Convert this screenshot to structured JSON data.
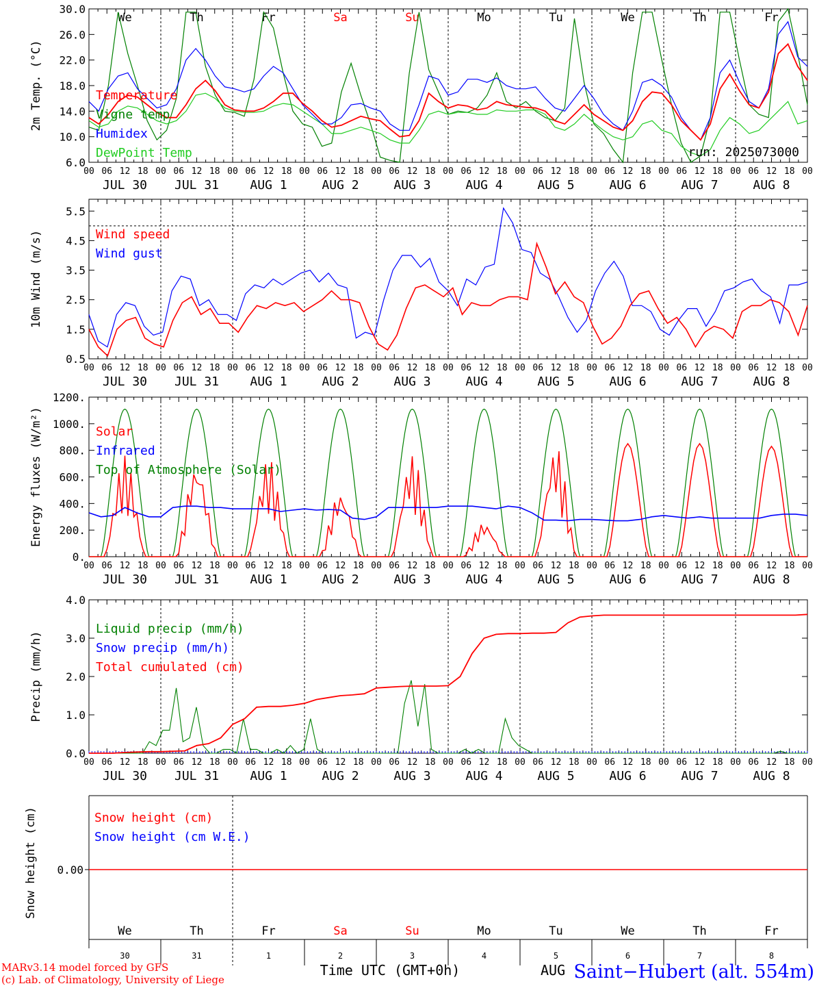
{
  "colors": {
    "red": "#ff0000",
    "green": "#008000",
    "lightgreen": "#22cc22",
    "blue": "#0000ff",
    "black": "#000000"
  },
  "days": {
    "labels": [
      "We",
      "Th",
      "Fr",
      "Sa",
      "Su",
      "Mo",
      "Tu",
      "We",
      "Th",
      "Fr"
    ],
    "weekend_color_days": [
      "Sa",
      "Su"
    ],
    "dates": [
      "JUL 30",
      "JUL 31",
      "AUG  1",
      "AUG  2",
      "AUG  3",
      "AUG  4",
      "AUG  5",
      "AUG  6",
      "AUG  7",
      "AUG  8"
    ],
    "day_numbers": [
      "30",
      "31",
      "1",
      "2",
      "3",
      "4",
      "5",
      "6",
      "7",
      "8"
    ],
    "hour_ticks": [
      "00",
      "06",
      "12",
      "18"
    ],
    "end_tick": "00"
  },
  "footer": {
    "model": "MARv3.14 model forced by GFS",
    "copyright": "(c) Lab. of Climatology, University of Liege",
    "xlabel": "Time UTC (GMT+0h)",
    "station": "Saint−Hubert (alt. 554m)",
    "overlap_text": "AUG"
  },
  "chart_data": [
    {
      "type": "line",
      "ylabel": "2m Temp. (°C)",
      "ylim": [
        6,
        30
      ],
      "yticks": [
        "6.0",
        "10.0",
        "14.0",
        "18.0",
        "22.0",
        "26.0",
        "30.0"
      ],
      "run_label": "run: 2025073000",
      "x_hours_step": 3,
      "series": [
        {
          "name": "Temperature",
          "color": "#ff0000",
          "values": [
            13,
            12,
            13.5,
            15.5,
            16.5,
            16.2,
            15,
            13.8,
            13,
            13,
            15,
            17.5,
            18.8,
            17.2,
            15,
            14.2,
            14,
            14,
            14.5,
            15.5,
            16.8,
            16.8,
            15.2,
            14,
            12.5,
            11.5,
            11.8,
            12.5,
            13.2,
            12.8,
            12.5,
            11.2,
            10,
            10.2,
            12.5,
            16.8,
            15.5,
            14.5,
            15,
            14.8,
            14.2,
            14.5,
            15.5,
            15,
            14.8,
            14.6,
            14.5,
            14,
            12.5,
            12,
            13.5,
            15,
            13.5,
            12.5,
            11.5,
            11,
            12.5,
            15.5,
            17,
            16.8,
            15,
            12.5,
            11,
            9.5,
            12,
            17.5,
            19.8,
            17.2,
            15,
            14.5,
            17,
            23,
            24.5,
            21,
            18.8
          ]
        },
        {
          "name": "Vigne temp",
          "color": "#008000",
          "values": [
            11.5,
            11,
            18,
            29.5,
            23,
            18,
            12.5,
            9.5,
            11,
            16,
            29.5,
            29.5,
            21,
            16.5,
            14,
            13.8,
            13.2,
            19,
            29.5,
            27,
            20,
            14,
            12,
            11.5,
            8.5,
            9,
            17,
            21.5,
            16.5,
            12,
            6.8,
            6.3,
            6,
            20,
            29.5,
            20.5,
            17,
            13.5,
            14,
            13.8,
            14.5,
            16.5,
            20,
            15.5,
            14.5,
            15.5,
            14,
            13,
            12.5,
            14.5,
            28.5,
            18.5,
            12,
            10.5,
            8,
            6,
            20,
            29.5,
            29.5,
            22,
            15,
            9,
            6,
            7,
            13,
            29.5,
            29.5,
            22,
            15,
            13.5,
            13,
            28,
            30,
            23,
            15
          ]
        },
        {
          "name": "Humidex",
          "color": "#0000ff",
          "values": [
            15.5,
            14,
            17.5,
            19.5,
            20,
            17.5,
            16,
            14.5,
            15,
            17.5,
            22,
            23.8,
            22,
            19.5,
            17.8,
            17.5,
            17,
            17.5,
            19.5,
            21,
            20,
            17.5,
            15,
            13.5,
            12,
            12,
            13,
            15,
            15.2,
            14.5,
            14,
            12,
            11,
            11,
            15,
            19.5,
            19,
            16.5,
            17,
            19,
            19,
            18.5,
            19.2,
            18,
            17.5,
            17.5,
            17.8,
            16,
            14.5,
            14,
            16,
            18,
            16,
            13.5,
            12,
            11,
            14,
            18.5,
            19,
            18,
            16.2,
            13,
            11,
            9.5,
            13,
            20,
            22,
            18.5,
            15.5,
            14.5,
            17.5,
            26,
            28,
            22.5,
            21
          ]
        },
        {
          "name": "DewPoint Temp",
          "color": "#22cc22",
          "values": [
            12.5,
            11.5,
            12,
            14,
            14.8,
            14.5,
            13.5,
            12.5,
            12,
            12.5,
            14,
            16.5,
            16.8,
            16,
            14.5,
            14,
            13.8,
            13.8,
            14,
            14.8,
            15.2,
            15,
            14,
            13,
            12,
            10.5,
            10.5,
            11,
            11.5,
            11,
            10.5,
            9.5,
            9,
            9,
            11,
            13.5,
            14,
            13.5,
            13.8,
            13.8,
            13.5,
            13.5,
            14.2,
            14,
            14,
            14.2,
            14.2,
            13.5,
            11.5,
            11,
            12,
            13.5,
            12.2,
            11,
            10,
            9.5,
            10,
            12,
            12.5,
            11,
            10.5,
            8.5,
            7.5,
            7,
            8,
            11,
            13,
            12,
            10.5,
            11,
            12.5,
            14,
            15.5,
            12,
            12.5
          ]
        }
      ]
    },
    {
      "type": "line",
      "ylabel": "10m Wind (m/s)",
      "ylim": [
        0.5,
        5.9
      ],
      "yticks": [
        "0.5",
        "1.5",
        "2.5",
        "3.5",
        "4.5",
        "5.5"
      ],
      "reference_line": 5.0,
      "x_hours_step": 3,
      "series": [
        {
          "name": "Wind speed",
          "color": "#ff0000",
          "values": [
            1.5,
            0.9,
            0.6,
            1.5,
            1.8,
            1.9,
            1.2,
            1.0,
            0.9,
            1.8,
            2.4,
            2.6,
            2.0,
            2.2,
            1.7,
            1.7,
            1.4,
            1.9,
            2.3,
            2.2,
            2.4,
            2.3,
            2.4,
            2.1,
            2.3,
            2.5,
            2.8,
            2.5,
            2.5,
            2.4,
            1.6,
            1.0,
            0.8,
            1.3,
            2.2,
            2.9,
            3.0,
            2.8,
            2.6,
            2.9,
            2.0,
            2.4,
            2.3,
            2.3,
            2.5,
            2.6,
            2.6,
            2.5,
            4.4,
            3.6,
            2.7,
            3.1,
            2.6,
            2.4,
            1.6,
            1.0,
            1.2,
            1.6,
            2.3,
            2.7,
            2.8,
            2.2,
            1.7,
            1.9,
            1.5,
            0.9,
            1.4,
            1.6,
            1.5,
            1.2,
            2.1,
            2.3,
            2.3,
            2.5,
            2.4,
            2.1,
            1.3,
            2.3
          ]
        },
        {
          "name": "Wind gust",
          "color": "#0000ff",
          "values": [
            2.0,
            1.1,
            0.9,
            2.0,
            2.4,
            2.3,
            1.6,
            1.3,
            1.4,
            2.8,
            3.3,
            3.2,
            2.3,
            2.5,
            2.0,
            2.0,
            1.8,
            2.7,
            3.0,
            2.9,
            3.2,
            3.0,
            3.2,
            3.4,
            3.5,
            3.1,
            3.4,
            3.0,
            2.9,
            1.2,
            1.4,
            1.3,
            2.5,
            3.5,
            4.0,
            4.0,
            3.6,
            3.9,
            3.1,
            2.8,
            2.3,
            3.2,
            3.0,
            3.6,
            3.7,
            5.6,
            5.1,
            4.2,
            4.1,
            3.4,
            3.2,
            2.6,
            1.9,
            1.4,
            1.8,
            2.8,
            3.4,
            3.8,
            3.3,
            2.3,
            2.3,
            2.1,
            1.5,
            1.3,
            1.8,
            2.2,
            2.2,
            1.6,
            2.1,
            2.8,
            2.9,
            3.1,
            3.2,
            2.8,
            2.6,
            1.7,
            3.0,
            3.0,
            3.1
          ]
        }
      ]
    },
    {
      "type": "line",
      "ylabel": "Energy fluxes (W/m²)",
      "ylim": [
        0,
        1200
      ],
      "yticks": [
        "0.",
        "200.",
        "400.",
        "600.",
        "800.",
        "1000.",
        "1200."
      ],
      "series": [
        {
          "name": "Solar",
          "color": "#ff0000",
          "peaks": [
            760,
            720,
            740,
            500,
            770,
            260,
            840,
            850,
            850,
            830
          ],
          "irregular_days": [
            0,
            1,
            2,
            3,
            4,
            5,
            6
          ]
        },
        {
          "name": "Infrared",
          "color": "#0000ff",
          "values": [
            330,
            300,
            310,
            370,
            330,
            300,
            300,
            370,
            380,
            380,
            370,
            370,
            360,
            360,
            360,
            360,
            340,
            350,
            360,
            350,
            355,
            350,
            290,
            280,
            300,
            370,
            370,
            370,
            370,
            370,
            380,
            380,
            380,
            370,
            360,
            380,
            370,
            330,
            275,
            275,
            270,
            280,
            280,
            275,
            270,
            270,
            280,
            300,
            310,
            300,
            290,
            300,
            290,
            290,
            290,
            290,
            290,
            310,
            320,
            320,
            310
          ]
        },
        {
          "name": "Top of Atmosphere (Solar)",
          "color": "#008000",
          "peak": 1110
        }
      ]
    },
    {
      "type": "line",
      "ylabel": "Precip (mm/h)",
      "ylim": [
        0,
        4
      ],
      "yticks": [
        "0.0",
        "1.0",
        "2.0",
        "3.0",
        "4.0"
      ],
      "x_hours_step": 3,
      "series": [
        {
          "name": "Liquid precip (mm/h)",
          "color": "#008000",
          "values": [
            0,
            0,
            0,
            0,
            0,
            0,
            0,
            0,
            0,
            0.3,
            0.2,
            0.6,
            0.6,
            1.7,
            0.3,
            0.4,
            1.2,
            0.2,
            0,
            0,
            0.1,
            0.1,
            0,
            0.9,
            0.1,
            0.1,
            0,
            0,
            0.1,
            0,
            0.2,
            0,
            0.1,
            0.9,
            0.1,
            0,
            0,
            0,
            0,
            0,
            0,
            0,
            0,
            0,
            0,
            0,
            0,
            1.3,
            1.9,
            0.7,
            1.8,
            0.1,
            0,
            0,
            0,
            0,
            0.1,
            0,
            0.1,
            0,
            0,
            0,
            0.9,
            0.4,
            0.2,
            0.1,
            0,
            0,
            0,
            0,
            0,
            0,
            0,
            0,
            0,
            0,
            0,
            0,
            0,
            0,
            0,
            0,
            0,
            0,
            0,
            0,
            0,
            0,
            0,
            0,
            0,
            0,
            0,
            0,
            0,
            0,
            0,
            0,
            0,
            0,
            0,
            0,
            0,
            0.05,
            0,
            0,
            0,
            0
          ]
        },
        {
          "name": "Snow precip (mm/h)",
          "color": "#0000ff",
          "values": []
        },
        {
          "name": "Total cumulated (cm)",
          "color": "#ff0000",
          "values": [
            0,
            0,
            0,
            0.02,
            0.03,
            0.04,
            0.04,
            0.05,
            0.06,
            0.2,
            0.25,
            0.4,
            0.75,
            0.9,
            1.2,
            1.22,
            1.22,
            1.25,
            1.3,
            1.4,
            1.45,
            1.5,
            1.52,
            1.55,
            1.7,
            1.72,
            1.74,
            1.75,
            1.75,
            1.75,
            1.76,
            2.0,
            2.6,
            3.0,
            3.1,
            3.12,
            3.12,
            3.13,
            3.13,
            3.15,
            3.4,
            3.55,
            3.58,
            3.6,
            3.6,
            3.6,
            3.6,
            3.6,
            3.6,
            3.6,
            3.6,
            3.6,
            3.6,
            3.6,
            3.6,
            3.6,
            3.6,
            3.6,
            3.6,
            3.6,
            3.62
          ]
        }
      ]
    },
    {
      "type": "line",
      "ylabel": "Snow height (cm)",
      "yticks": [
        "0.00"
      ],
      "series": [
        {
          "name": "Snow height (cm)",
          "color": "#ff0000",
          "values": [
            0,
            0
          ]
        },
        {
          "name": "Snow height (cm W.E.)",
          "color": "#0000ff",
          "values": [
            0,
            0
          ]
        }
      ]
    }
  ]
}
